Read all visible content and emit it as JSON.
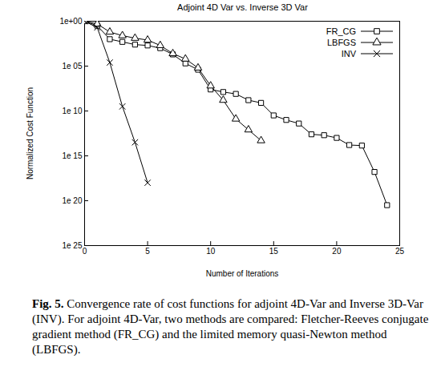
{
  "chart_data": {
    "type": "line",
    "title": "Adjoint 4D Var vs. Inverse 3D Var",
    "x_label": "Number of Iterations",
    "y_label": "Normalized Cost Function",
    "caption": {
      "label": "Fig. 5.",
      "text": "Convergence rate of cost functions for adjoint 4D-Var and Inverse 3D-Var (INV). For adjoint 4D-Var, two methods are compared: Fletcher-Reeves conjugate gradient method (FR_CG) and the limited memory quasi-Newton method (LBFGS)."
    },
    "log": "y",
    "grid": false,
    "legend": "top-right",
    "xlim": [
      0,
      25
    ],
    "xticks": [
      0,
      5,
      10,
      15,
      20,
      25
    ],
    "ylim": [
      1e-25,
      1
    ],
    "yticks": [
      {
        "value": 1,
        "label": "1e+00"
      },
      {
        "value": 1e-05,
        "label": "1e 05"
      },
      {
        "value": 1e-10,
        "label": "1e 10"
      },
      {
        "value": 1e-15,
        "label": "1e 15"
      },
      {
        "value": 1e-20,
        "label": "1e 20"
      },
      {
        "value": 1e-25,
        "label": "1e 25"
      }
    ],
    "series": [
      {
        "name": "FR_CG",
        "color": "#000000",
        "marker": "square",
        "line_style": "solid",
        "x": [
          0,
          1,
          2,
          3,
          4,
          5,
          6,
          7,
          8,
          9,
          10,
          11,
          12,
          13,
          14,
          15,
          16,
          17,
          18,
          19,
          20,
          21,
          22,
          23,
          24
        ],
        "values": [
          1,
          0.32,
          0.01,
          0.005,
          0.0025,
          0.002,
          0.001,
          0.0002,
          2e-05,
          4e-06,
          2.5e-08,
          1.3e-08,
          8e-09,
          1.6e-09,
          8e-10,
          3.2e-11,
          1e-11,
          4e-12,
          2.5e-13,
          2e-13,
          1e-13,
          1.6e-14,
          1.4e-14,
          1.6e-17,
          3.2e-21
        ]
      },
      {
        "name": "LBFGS",
        "color": "#000000",
        "marker": "triangle",
        "line_style": "solid",
        "x": [
          0,
          1,
          2,
          3,
          4,
          5,
          6,
          7,
          8,
          9,
          10,
          11,
          12,
          13,
          14
        ],
        "values": [
          1,
          0.5,
          0.063,
          0.025,
          0.013,
          0.008,
          0.002,
          0.00025,
          6.3e-05,
          6.3e-06,
          6.3e-08,
          1.6e-09,
          1.3e-11,
          8e-13,
          5e-14
        ]
      },
      {
        "name": "INV",
        "color": "#000000",
        "marker": "times",
        "line_style": "solid",
        "x": [
          0,
          1,
          2,
          3,
          4,
          5
        ],
        "values": [
          1,
          0.2,
          2.5e-05,
          3.2e-10,
          3.2e-14,
          1e-18
        ]
      }
    ]
  }
}
